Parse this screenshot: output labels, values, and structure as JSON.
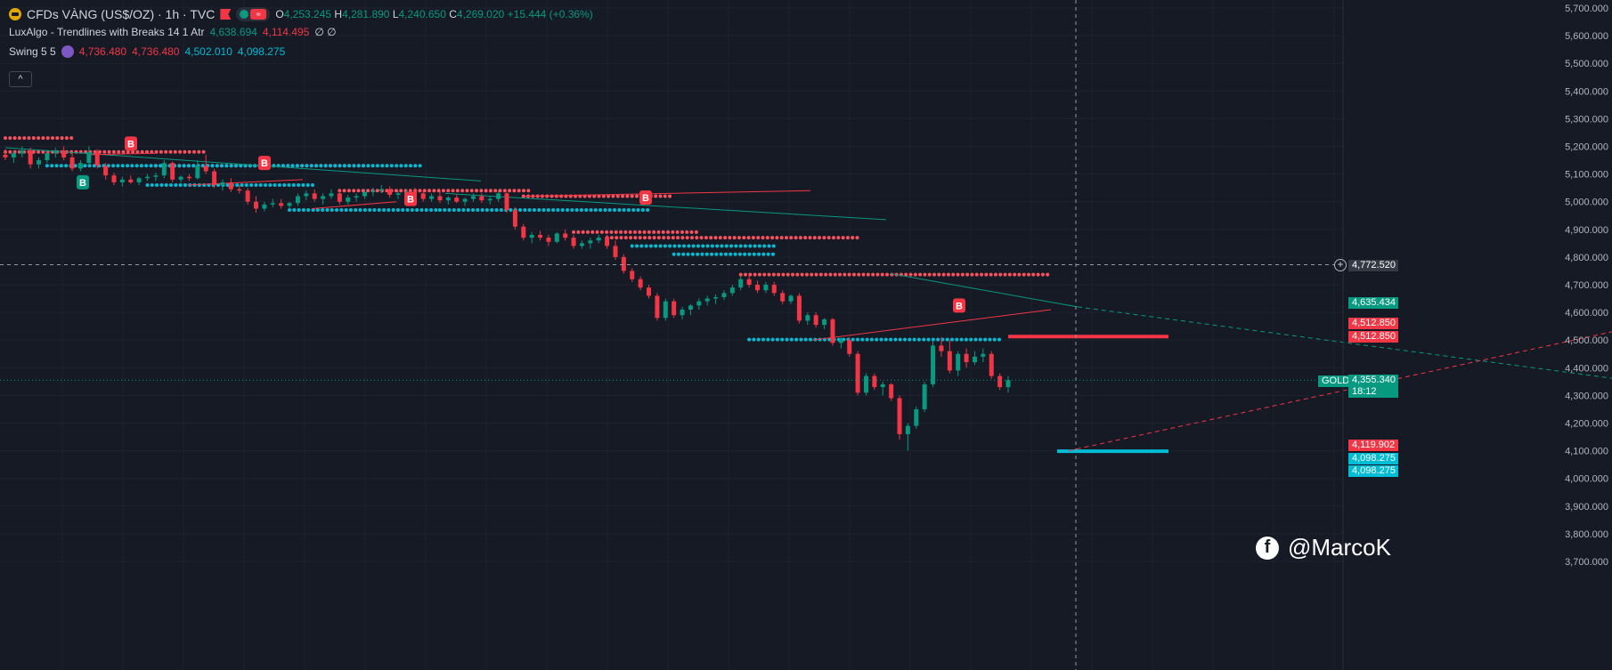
{
  "header": {
    "symbol": "CFDs VÀNG (US$/OZ) · 1h · TVC",
    "o_label": "O",
    "o": "4,253.245",
    "h_label": "H",
    "h": "4,281.890",
    "l_label": "L",
    "l": "4,240.650",
    "c_label": "C",
    "c": "4,269.020",
    "change": "+15.444 (+0.36%)",
    "pill_wave": "≈"
  },
  "indicators": {
    "luxalgo": {
      "name": "LuxAlgo - Trendlines with Breaks 14 1 Atr",
      "v1": "4,638.694",
      "v2": "4,114.495",
      "v3": "∅ ∅"
    },
    "swing": {
      "name": "Swing 5 5",
      "v1": "4,736.480",
      "v2": "4,736.480",
      "v3": "4,502.010",
      "v4": "4,098.275"
    },
    "collapse_label": "^"
  },
  "price_axis": {
    "labels": [
      "5,700.000",
      "5,600.000",
      "5,500.000",
      "5,400.000",
      "5,300.000",
      "5,200.000",
      "5,100.000",
      "5,000.000",
      "4,900.000",
      "4,800.000",
      "4,700.000",
      "4,600.000",
      "4,500.000",
      "4,400.000",
      "4,300.000",
      "4,200.000",
      "4,100.000",
      "4,000.000",
      "3,900.000",
      "3,800.000",
      "3,700.000"
    ],
    "crosshair_price": "4,772.520",
    "tag_upper_trend": "4,635.434",
    "tag_swing_high_1": "4,512.850",
    "tag_swing_high_2": "4,512.850",
    "tag_gold_name": "GOLD",
    "tag_gold_price": "4,355.340",
    "tag_gold_timer": "18:12",
    "tag_lower_trend": "4,119.902",
    "tag_swing_low_1": "4,098.275",
    "tag_swing_low_2": "4,098.275",
    "plus_icon": "+"
  },
  "break_label": "B",
  "watermark": {
    "fb": "f",
    "handle": "@MarcoK"
  },
  "colors": {
    "bg": "#161a25",
    "bull": "#089981",
    "bear": "#f23645",
    "cyan": "#00bcd4",
    "red_dot": "#f7525f",
    "grid": "#1f2330"
  },
  "chart_data": {
    "type": "candlestick",
    "symbol": "GOLD",
    "y_range": [
      3650,
      5720
    ],
    "last_price": 4355.34,
    "crosshair_price": 4772.52,
    "candles": [
      [
        5170,
        5190,
        5150,
        5160
      ],
      [
        5160,
        5185,
        5140,
        5175
      ],
      [
        5175,
        5200,
        5160,
        5185
      ],
      [
        5185,
        5195,
        5120,
        5135
      ],
      [
        5135,
        5160,
        5120,
        5150
      ],
      [
        5150,
        5185,
        5140,
        5175
      ],
      [
        5175,
        5195,
        5160,
        5185
      ],
      [
        5185,
        5200,
        5150,
        5160
      ],
      [
        5160,
        5175,
        5110,
        5120
      ],
      [
        5120,
        5150,
        5110,
        5140
      ],
      [
        5140,
        5200,
        5130,
        5180
      ],
      [
        5180,
        5190,
        5120,
        5130
      ],
      [
        5130,
        5140,
        5080,
        5095
      ],
      [
        5095,
        5105,
        5060,
        5070
      ],
      [
        5070,
        5090,
        5055,
        5080
      ],
      [
        5080,
        5095,
        5065,
        5070
      ],
      [
        5070,
        5090,
        5060,
        5085
      ],
      [
        5085,
        5100,
        5075,
        5090
      ],
      [
        5090,
        5105,
        5075,
        5095
      ],
      [
        5095,
        5150,
        5085,
        5140
      ],
      [
        5140,
        5145,
        5070,
        5080
      ],
      [
        5080,
        5095,
        5070,
        5090
      ],
      [
        5090,
        5100,
        5075,
        5085
      ],
      [
        5085,
        5150,
        5080,
        5130
      ],
      [
        5130,
        5170,
        5100,
        5110
      ],
      [
        5110,
        5120,
        5050,
        5060
      ],
      [
        5060,
        5080,
        5040,
        5070
      ],
      [
        5070,
        5085,
        5035,
        5045
      ],
      [
        5045,
        5060,
        5030,
        5040
      ],
      [
        5040,
        5050,
        4990,
        5000
      ],
      [
        5000,
        5020,
        4960,
        4975
      ],
      [
        4975,
        5000,
        4965,
        4990
      ],
      [
        4990,
        5010,
        4980,
        4995
      ],
      [
        4995,
        5010,
        4975,
        4985
      ],
      [
        4985,
        5000,
        4970,
        4995
      ],
      [
        4995,
        5030,
        4985,
        5020
      ],
      [
        5020,
        5040,
        5005,
        5030
      ],
      [
        5030,
        5045,
        5000,
        5010
      ],
      [
        5010,
        5030,
        4990,
        5020
      ],
      [
        5020,
        5045,
        5010,
        5030
      ],
      [
        5030,
        5040,
        4990,
        5000
      ],
      [
        5000,
        5025,
        4990,
        5015
      ],
      [
        5015,
        5030,
        5000,
        5020
      ],
      [
        5020,
        5045,
        5010,
        5035
      ],
      [
        5035,
        5050,
        5020,
        5040
      ],
      [
        5040,
        5060,
        5030,
        5045
      ],
      [
        5045,
        5055,
        5015,
        5025
      ],
      [
        5025,
        5040,
        5010,
        5030
      ],
      [
        5030,
        5045,
        5020,
        5035
      ],
      [
        5035,
        5050,
        5020,
        5030
      ],
      [
        5030,
        5040,
        5000,
        5010
      ],
      [
        5010,
        5030,
        5000,
        5020
      ],
      [
        5020,
        5035,
        4995,
        5005
      ],
      [
        5005,
        5020,
        4990,
        5015
      ],
      [
        5015,
        5025,
        4995,
        5000
      ],
      [
        5000,
        5015,
        4985,
        5010
      ],
      [
        5010,
        5030,
        5000,
        5020
      ],
      [
        5020,
        5030,
        4995,
        5005
      ],
      [
        5005,
        5020,
        4990,
        5010
      ],
      [
        5010,
        5040,
        5000,
        5030
      ],
      [
        5030,
        5035,
        4960,
        4970
      ],
      [
        4970,
        4980,
        4900,
        4910
      ],
      [
        4910,
        4920,
        4860,
        4870
      ],
      [
        4870,
        4890,
        4850,
        4880
      ],
      [
        4880,
        4895,
        4860,
        4870
      ],
      [
        4870,
        4880,
        4840,
        4855
      ],
      [
        4855,
        4890,
        4850,
        4885
      ],
      [
        4885,
        4900,
        4860,
        4870
      ],
      [
        4870,
        4880,
        4830,
        4840
      ],
      [
        4840,
        4860,
        4830,
        4850
      ],
      [
        4850,
        4870,
        4830,
        4860
      ],
      [
        4860,
        4880,
        4850,
        4870
      ],
      [
        4870,
        4880,
        4830,
        4840
      ],
      [
        4840,
        4860,
        4790,
        4800
      ],
      [
        4800,
        4810,
        4740,
        4750
      ],
      [
        4750,
        4760,
        4710,
        4720
      ],
      [
        4720,
        4730,
        4680,
        4690
      ],
      [
        4690,
        4700,
        4650,
        4660
      ],
      [
        4660,
        4670,
        4570,
        4580
      ],
      [
        4580,
        4650,
        4570,
        4640
      ],
      [
        4640,
        4650,
        4580,
        4590
      ],
      [
        4590,
        4620,
        4575,
        4610
      ],
      [
        4610,
        4630,
        4590,
        4625
      ],
      [
        4625,
        4650,
        4610,
        4640
      ],
      [
        4640,
        4660,
        4625,
        4650
      ],
      [
        4650,
        4665,
        4630,
        4655
      ],
      [
        4655,
        4680,
        4645,
        4670
      ],
      [
        4670,
        4700,
        4660,
        4690
      ],
      [
        4690,
        4730,
        4680,
        4720
      ],
      [
        4720,
        4735,
        4690,
        4700
      ],
      [
        4700,
        4715,
        4670,
        4680
      ],
      [
        4680,
        4710,
        4670,
        4700
      ],
      [
        4700,
        4710,
        4660,
        4670
      ],
      [
        4670,
        4680,
        4630,
        4640
      ],
      [
        4640,
        4665,
        4630,
        4660
      ],
      [
        4660,
        4670,
        4560,
        4570
      ],
      [
        4570,
        4600,
        4555,
        4590
      ],
      [
        4590,
        4600,
        4545,
        4555
      ],
      [
        4555,
        4580,
        4540,
        4575
      ],
      [
        4575,
        4580,
        4480,
        4490
      ],
      [
        4490,
        4510,
        4470,
        4500
      ],
      [
        4500,
        4510,
        4440,
        4450
      ],
      [
        4450,
        4460,
        4300,
        4310
      ],
      [
        4310,
        4380,
        4300,
        4370
      ],
      [
        4370,
        4380,
        4320,
        4330
      ],
      [
        4330,
        4350,
        4300,
        4340
      ],
      [
        4340,
        4345,
        4280,
        4290
      ],
      [
        4290,
        4300,
        4140,
        4160
      ],
      [
        4160,
        4200,
        4100,
        4190
      ],
      [
        4190,
        4260,
        4180,
        4250
      ],
      [
        4250,
        4350,
        4240,
        4340
      ],
      [
        4340,
        4500,
        4330,
        4480
      ],
      [
        4480,
        4510,
        4440,
        4460
      ],
      [
        4460,
        4500,
        4380,
        4390
      ],
      [
        4390,
        4460,
        4370,
        4450
      ],
      [
        4450,
        4470,
        4400,
        4420
      ],
      [
        4420,
        4460,
        4410,
        4440
      ],
      [
        4440,
        4470,
        4420,
        4450
      ],
      [
        4450,
        4460,
        4360,
        4370
      ],
      [
        4370,
        4380,
        4320,
        4330
      ],
      [
        4330,
        4370,
        4310,
        4355
      ]
    ],
    "levels": {
      "swing_highs": [
        5230,
        5180,
        5130,
        5120,
        5040,
        5020,
        4890,
        4870,
        4736.48,
        4512.85
      ],
      "swing_lows": [
        5130,
        5060,
        5060,
        4970,
        4970,
        4840,
        4810,
        4502.01,
        4098.275
      ],
      "upper_trendline_value": 4635.434,
      "lower_trendline_value": 4119.902
    },
    "breaks": [
      "B",
      "B",
      "B",
      "B",
      "B",
      "B"
    ]
  }
}
